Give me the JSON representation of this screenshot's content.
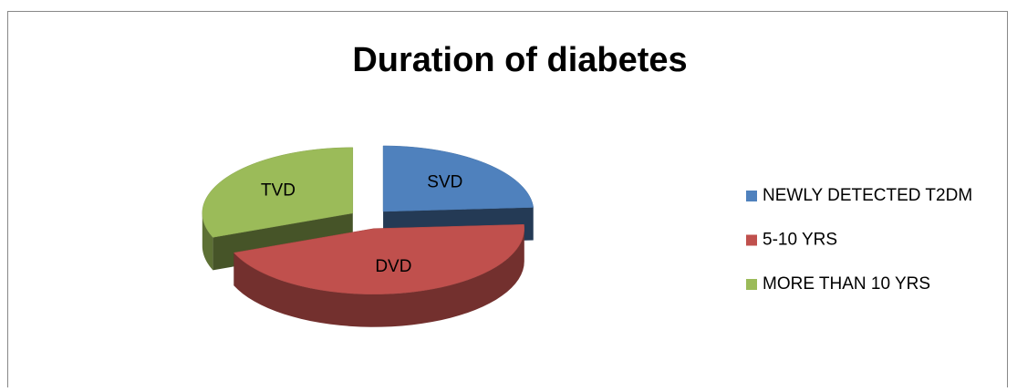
{
  "chart_data": {
    "type": "pie",
    "title": "Duration of diabetes",
    "categories": [
      "NEWLY DETECTED T2DM",
      "5-10 YRS",
      "MORE THAN 10 YRS"
    ],
    "labels": [
      "SVD",
      "DVD",
      "TVD"
    ],
    "values": [
      24,
      45,
      31
    ],
    "colors": [
      "#4f81bd",
      "#c0504d",
      "#9bbb59"
    ],
    "legend": "right"
  }
}
